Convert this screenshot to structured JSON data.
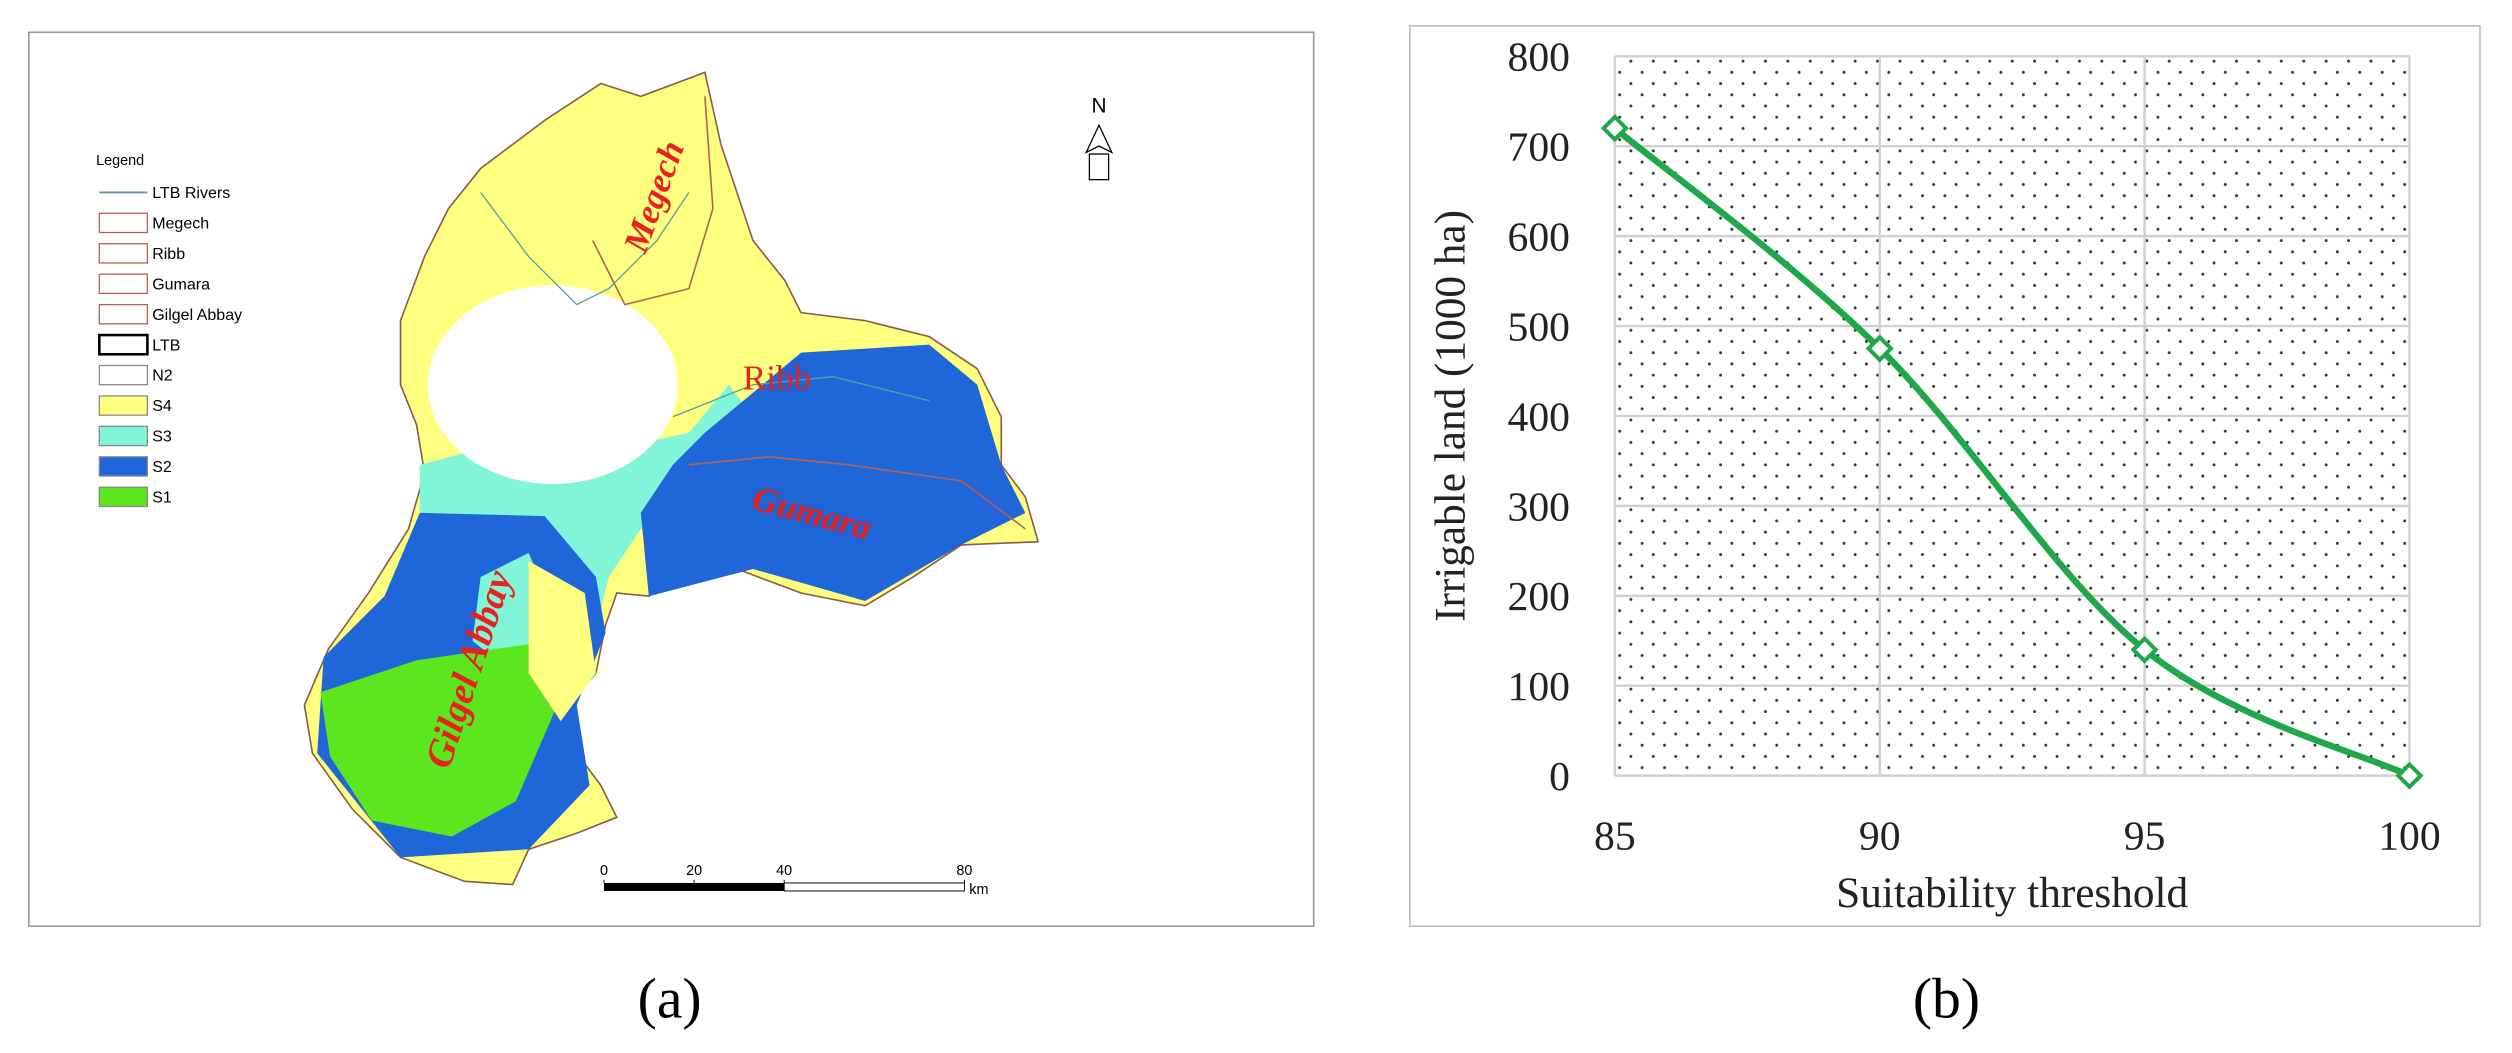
{
  "map": {
    "legend_title": "Legend",
    "legend": [
      {
        "label": "LTB Rivers",
        "style": "line",
        "color": "#5a9aa8"
      },
      {
        "label": "Megech",
        "style": "outline",
        "color": "#b4605a"
      },
      {
        "label": "Ribb",
        "style": "outline",
        "color": "#b4605a"
      },
      {
        "label": "Gumara",
        "style": "outline",
        "color": "#b4605a"
      },
      {
        "label": "Gilgel Abbay",
        "style": "outline",
        "color": "#b4605a"
      },
      {
        "label": "LTB",
        "style": "outline",
        "color": "#000000"
      },
      {
        "label": "N2",
        "style": "fill",
        "color": "#ffffff"
      },
      {
        "label": "S4",
        "style": "fill",
        "color": "#ffff80"
      },
      {
        "label": "S3",
        "style": "fill",
        "color": "#80f5d8"
      },
      {
        "label": "S2",
        "style": "fill",
        "color": "#1f66d8"
      },
      {
        "label": "S1",
        "style": "fill",
        "color": "#5ce61e"
      }
    ],
    "labels": [
      "Megech",
      "Ribb",
      "Gumara",
      "Gilgel Abbay"
    ],
    "north": "N",
    "scale_ticks": [
      0,
      20,
      40,
      80
    ],
    "scale_unit": "km",
    "caption": "(a)"
  },
  "chart_data": {
    "type": "line",
    "x": [
      85,
      90,
      95,
      100
    ],
    "series": [
      {
        "name": "Irrigable land",
        "color": "#1fa84a",
        "values": [
          720,
          475,
          140,
          0
        ]
      }
    ],
    "xlim": [
      85,
      100
    ],
    "xticks": [
      85,
      90,
      95,
      100
    ],
    "ylim": [
      0,
      800
    ],
    "yticks": [
      0,
      100,
      200,
      300,
      400,
      500,
      600,
      700,
      800
    ],
    "xlabel": "Suitability threshold",
    "ylabel": "Irrigable land (1000 ha)",
    "grid": true,
    "smooth": true,
    "caption": "(b)"
  }
}
